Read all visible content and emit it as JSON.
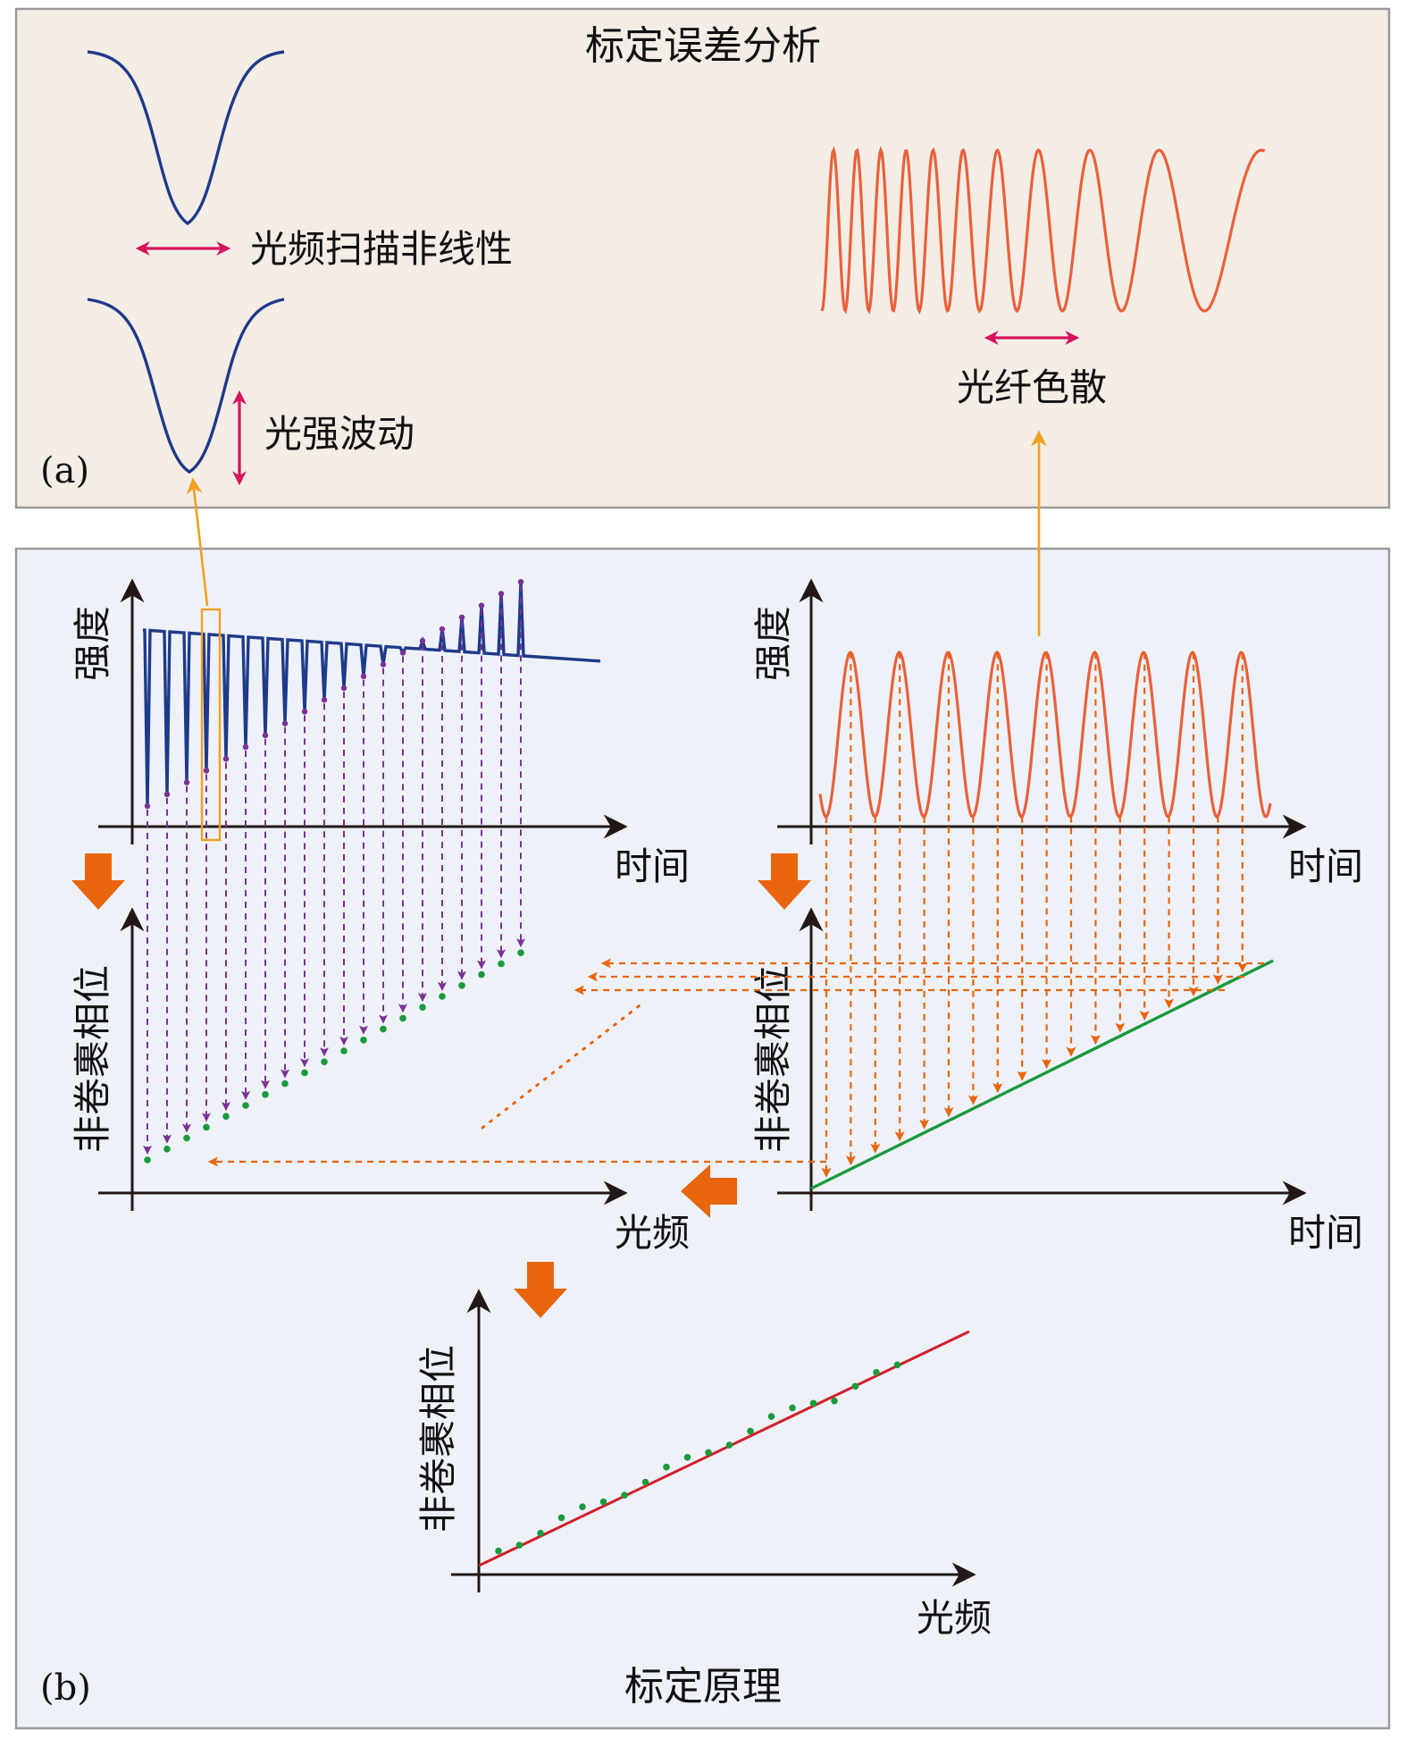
{
  "panel_a": {
    "title": "标定误差分析",
    "tag": "(a)",
    "labels": {
      "nonlinear": "光频扫描非线性",
      "intensity": "光强波动",
      "dispersion": "光纤色散"
    }
  },
  "panel_b": {
    "title": "标定原理",
    "tag": "(b)",
    "plot_tl": {
      "ylabel": "强度",
      "xlabel": "时间"
    },
    "plot_tr": {
      "ylabel": "强度",
      "xlabel": "时间"
    },
    "plot_ml": {
      "ylabel": "非卷裹相位",
      "xlabel": "光频"
    },
    "plot_mr": {
      "ylabel": "非卷裹相位",
      "xlabel": "时间"
    },
    "plot_bot": {
      "ylabel": "非卷裹相位",
      "xlabel": "光频"
    }
  },
  "colors": {
    "panel_a_bg": "#f4ede6",
    "panel_b_bg": "#eef1f8",
    "blue_trace": "#1e3a8a",
    "orange_trace": "#e8613c",
    "magenta_arrow": "#d6145b",
    "flow_arrow": "#e8650e",
    "guide_arrow": "#f0a020",
    "green": "#1a9a3c",
    "red_fit": "#d21f2a",
    "purple": "#7b3294"
  },
  "icons": [
    "double-arrow-horizontal-icon",
    "double-arrow-vertical-icon",
    "flow-arrow-down-icon",
    "flow-arrow-left-icon"
  ]
}
